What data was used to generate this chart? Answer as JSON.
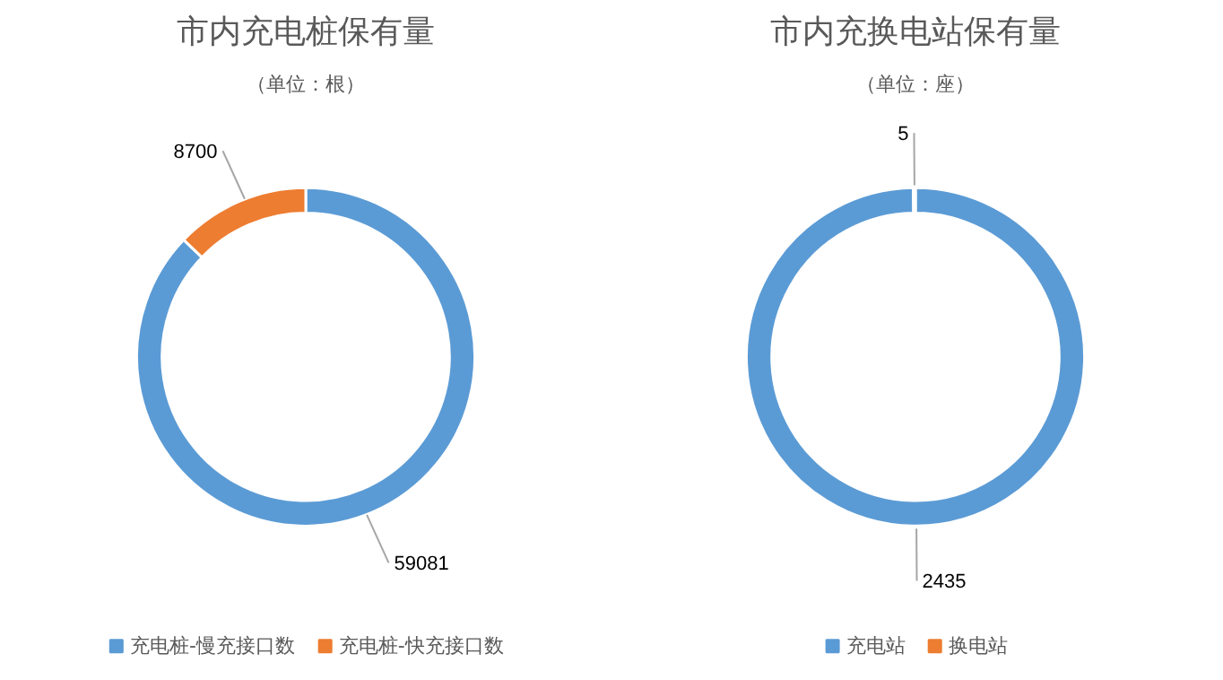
{
  "chart_data": [
    {
      "type": "donut",
      "title": "市内充电桩保有量",
      "subtitle": "（单位：根）",
      "categories": [
        "充电桩-慢充接口数",
        "充电桩-快充接口数"
      ],
      "values": [
        59081,
        8700
      ],
      "colors": [
        "#5b9bd5",
        "#ed7d31"
      ],
      "data_labels": true,
      "legend": "bottom"
    },
    {
      "type": "donut",
      "title": "市内充换电站保有量",
      "subtitle": "（单位：座）",
      "categories": [
        "充电站",
        "换电站"
      ],
      "values": [
        2435,
        5
      ],
      "colors": [
        "#5b9bd5",
        "#ed7d31"
      ],
      "data_labels": true,
      "legend": "bottom"
    }
  ]
}
